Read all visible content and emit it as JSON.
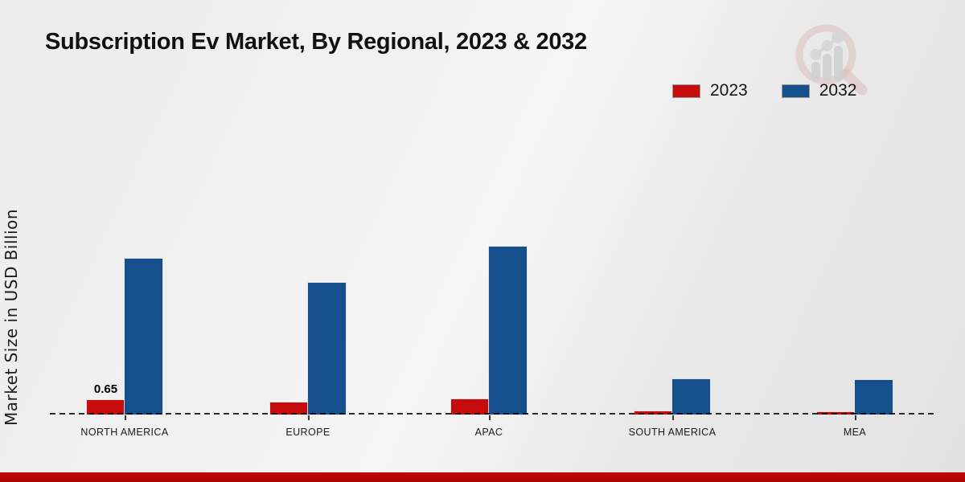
{
  "title": "Subscription Ev Market, By Regional, 2023 & 2032",
  "chart_data": {
    "type": "bar",
    "title": "Subscription Ev Market, By Regional, 2023 & 2032",
    "xlabel": "",
    "ylabel": "Market Size in USD Billion",
    "unit": "USD Billion",
    "categories": [
      "NORTH AMERICA",
      "EUROPE",
      "APAC",
      "SOUTH AMERICA",
      "MEA"
    ],
    "series": [
      {
        "name": "2023",
        "color": "#c60c0c",
        "values": [
          0.65,
          0.55,
          0.7,
          0.16,
          0.12
        ]
      },
      {
        "name": "2032",
        "color": "#15508c",
        "values": [
          7.0,
          5.92,
          7.55,
          1.59,
          1.55
        ]
      }
    ],
    "annotations": [
      {
        "series": "2023",
        "category_index": 0,
        "text": "0.65"
      }
    ],
    "baseline_value": 0,
    "grid": false,
    "axis_line_style": "dashed",
    "legend_position": "top-right"
  },
  "legend": {
    "items": [
      {
        "label": "2023",
        "color": "#c60c0c"
      },
      {
        "label": "2032",
        "color": "#15508c"
      }
    ]
  },
  "watermark": {
    "name": "market-research-logo"
  },
  "footer": {
    "color": "#b40606"
  }
}
